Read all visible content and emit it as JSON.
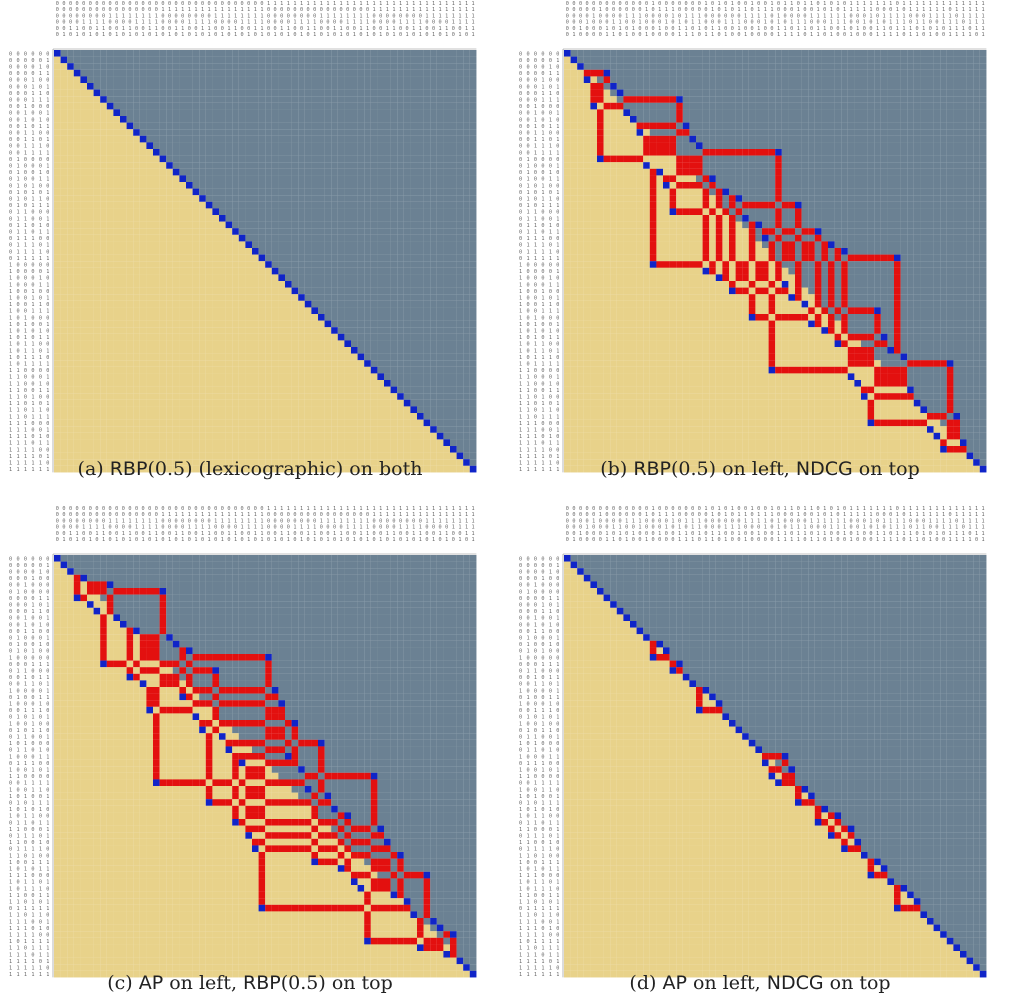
{
  "colors": {
    "upper": "#6b8193",
    "lower": "#e8d28a",
    "diagonal": "#1024c8",
    "disagree": "#e3100f",
    "label": "#666666"
  },
  "matrix_size": 64,
  "chart_data": [
    {
      "type": "heatmap",
      "id": "a",
      "caption_label": "(a)",
      "caption_left_metric": "RBP",
      "caption_left_param": "(0.5) (lexicographic) on both",
      "caption_right_metric": "",
      "caption_right_param": "",
      "legend": "",
      "row_order": "rbp",
      "col_order": "rbp",
      "grid": false
    },
    {
      "type": "heatmap",
      "id": "b",
      "caption_label": "(b)",
      "caption_left_metric": "RBP",
      "caption_left_param": "(0.5) on left, ",
      "caption_right_metric": "NDCG",
      "caption_right_param": " on top",
      "row_order": "rbp",
      "col_order": "ndcg",
      "grid": false
    },
    {
      "type": "heatmap",
      "id": "c",
      "caption_label": "(c)",
      "caption_left_metric": "AP",
      "caption_left_param": " on left, ",
      "caption_right_metric": "RBP",
      "caption_right_param": "(0.5) on top",
      "row_order": "ap",
      "col_order": "rbp",
      "grid": false
    },
    {
      "type": "heatmap",
      "id": "d",
      "caption_label": "(d)",
      "caption_left_metric": "AP",
      "caption_left_param": " on left, ",
      "caption_right_metric": "NDCG",
      "caption_right_param": " on top",
      "row_order": "ap",
      "col_order": "ndcg",
      "grid": false
    }
  ]
}
